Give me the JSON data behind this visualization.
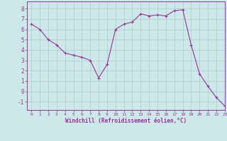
{
  "x": [
    0,
    1,
    2,
    3,
    4,
    5,
    6,
    7,
    8,
    9,
    10,
    11,
    12,
    13,
    14,
    15,
    16,
    17,
    18,
    19,
    20,
    21,
    22,
    23
  ],
  "y": [
    6.5,
    6.0,
    5.0,
    4.5,
    3.7,
    3.5,
    3.3,
    3.0,
    1.3,
    2.6,
    6.0,
    6.5,
    6.7,
    7.5,
    7.3,
    7.4,
    7.3,
    7.8,
    7.9,
    4.5,
    1.7,
    0.5,
    -0.6,
    -1.4
  ],
  "line_color": "#993399",
  "marker": "+",
  "marker_color": "#993399",
  "bg_color": "#cce8e8",
  "grid_color": "#aacccc",
  "xlabel": "Windchill (Refroidissement éolien,°C)",
  "xlim": [
    -0.5,
    23
  ],
  "ylim": [
    -1.8,
    8.7
  ],
  "yticks": [
    -1,
    0,
    1,
    2,
    3,
    4,
    5,
    6,
    7,
    8
  ],
  "xticks": [
    0,
    1,
    2,
    3,
    4,
    5,
    6,
    7,
    8,
    9,
    10,
    11,
    12,
    13,
    14,
    15,
    16,
    17,
    18,
    19,
    20,
    21,
    22,
    23
  ],
  "tick_color": "#993399",
  "axis_color": "#993399"
}
